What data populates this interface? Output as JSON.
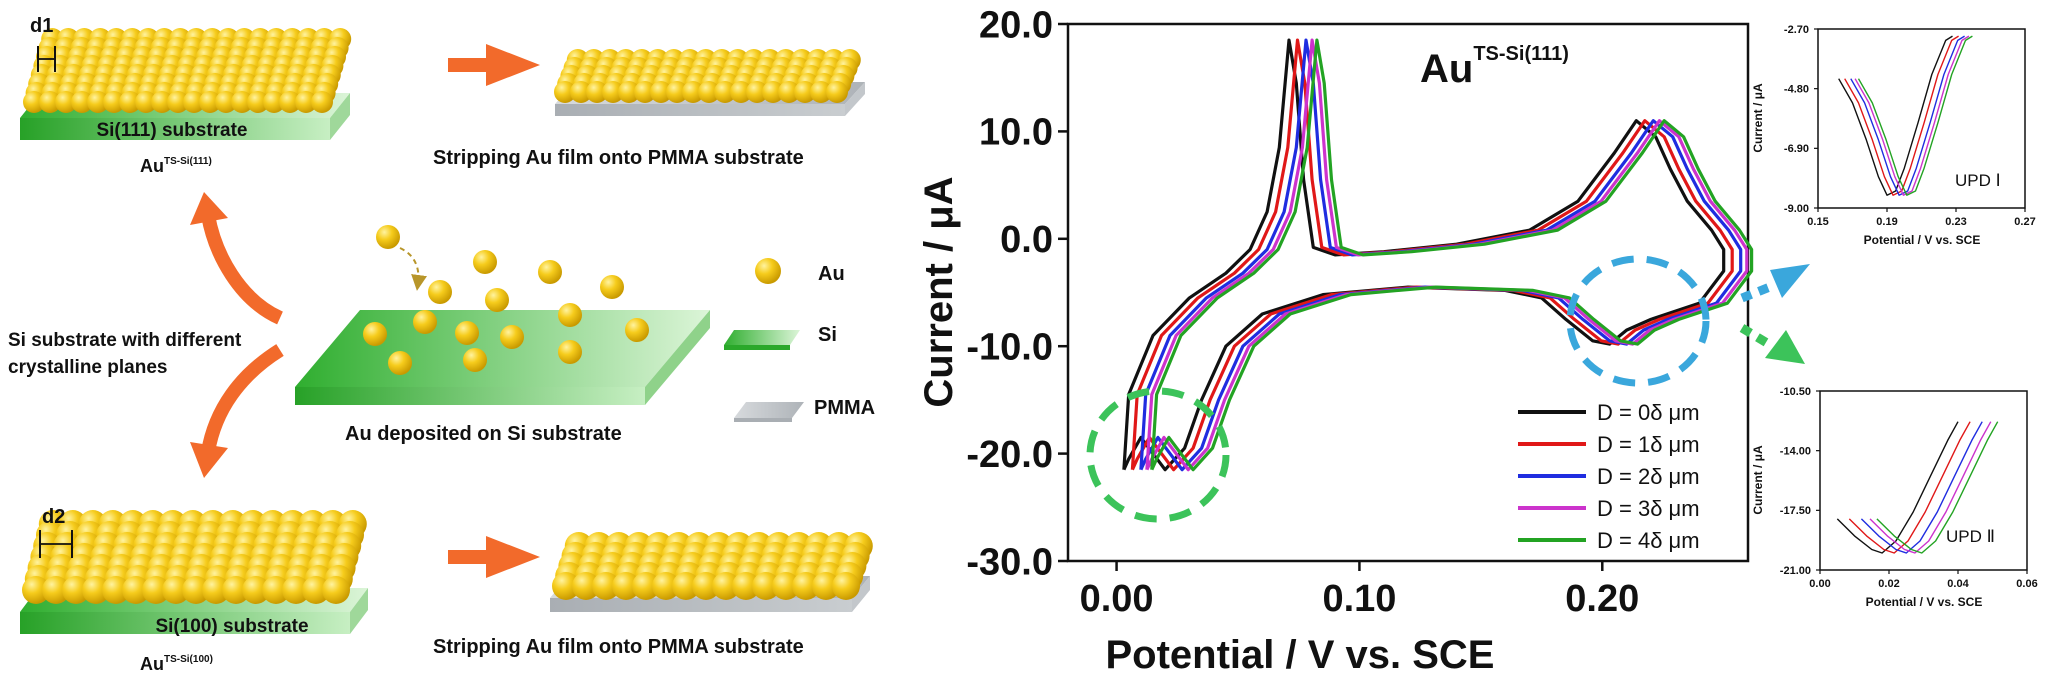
{
  "left_panel": {
    "d1_label": "d1",
    "d2_label": "d2",
    "si111_label": "Si(111) substrate",
    "si100_label": "Si(100) substrate",
    "au_ts_111": {
      "base": "Au",
      "sup": "TS-Si(111)"
    },
    "au_ts_100": {
      "base": "Au",
      "sup": "TS-Si(100)"
    },
    "strip_top": "Stripping Au film onto PMMA substrate",
    "strip_bottom": "Stripping Au film onto PMMA substrate",
    "si_substrate_text": [
      "Si substrate with different",
      "crystalline planes"
    ],
    "deposit_label": "Au deposited on Si substrate",
    "legend": {
      "au": "Au",
      "si": "Si",
      "pmma": "PMMA"
    },
    "colors": {
      "gold": "#f2c200",
      "si_green": "#3cb83c",
      "pmma_gray": "#b8bcc0",
      "arrow_orange": "#f26a2b"
    }
  },
  "chart_data": [
    {
      "type": "line",
      "title": "Au",
      "title_sup": "TS-Si(111)",
      "xlabel": "Potential / V vs. SCE",
      "ylabel": "Current / μA",
      "xlim": [
        -0.02,
        0.26
      ],
      "ylim": [
        -30,
        20
      ],
      "xticks": [
        "0.00",
        "0.10",
        "0.20"
      ],
      "yticks": [
        "20.0",
        "10.0",
        "0.0",
        "-10.0",
        "-20.0",
        "-30.0"
      ],
      "legend_position": "bottom-right",
      "series": [
        {
          "name": "D = 0δ μm",
          "color": "#111111"
        },
        {
          "name": "D = 1δ μm",
          "color": "#e01818"
        },
        {
          "name": "D = 2δ μm",
          "color": "#1f2de0"
        },
        {
          "name": "D = 3δ μm",
          "color": "#cc33cc"
        },
        {
          "name": "D = 4δ μm",
          "color": "#23a323"
        }
      ],
      "curve_points": [
        [
          0.003,
          -21.5
        ],
        [
          0.005,
          -14.5
        ],
        [
          0.015,
          -9.0
        ],
        [
          0.03,
          -5.5
        ],
        [
          0.045,
          -3.2
        ],
        [
          0.055,
          -1.0
        ],
        [
          0.062,
          2.5
        ],
        [
          0.067,
          8.5
        ],
        [
          0.071,
          18.5
        ],
        [
          0.074,
          14.5
        ],
        [
          0.077,
          5.5
        ],
        [
          0.081,
          -0.8
        ],
        [
          0.09,
          -1.5
        ],
        [
          0.11,
          -1.2
        ],
        [
          0.14,
          -0.5
        ],
        [
          0.17,
          0.8
        ],
        [
          0.19,
          3.5
        ],
        [
          0.205,
          8.0
        ],
        [
          0.214,
          11.0
        ],
        [
          0.222,
          9.5
        ],
        [
          0.228,
          6.5
        ],
        [
          0.235,
          3.5
        ],
        [
          0.245,
          0.8
        ],
        [
          0.25,
          -1.0
        ],
        [
          0.25,
          -3.0
        ],
        [
          0.24,
          -6.0
        ],
        [
          0.22,
          -7.5
        ],
        [
          0.21,
          -8.5
        ],
        [
          0.203,
          -9.8
        ],
        [
          0.196,
          -9.5
        ],
        [
          0.185,
          -7.5
        ],
        [
          0.175,
          -5.5
        ],
        [
          0.16,
          -4.8
        ],
        [
          0.12,
          -4.5
        ],
        [
          0.085,
          -5.2
        ],
        [
          0.06,
          -7.0
        ],
        [
          0.045,
          -10.0
        ],
        [
          0.035,
          -15.0
        ],
        [
          0.028,
          -19.5
        ],
        [
          0.02,
          -21.5
        ],
        [
          0.015,
          -20.0
        ],
        [
          0.01,
          -18.5
        ],
        [
          0.005,
          -20.5
        ],
        [
          0.003,
          -21.5
        ]
      ],
      "shifts": [
        0,
        0.0035,
        0.007,
        0.0095,
        0.0115
      ]
    },
    {
      "type": "line",
      "label": "UPD Ⅰ",
      "xlabel": "Potential / V vs. SCE",
      "ylabel": "Current / μA",
      "xlim": [
        0.15,
        0.27
      ],
      "ylim": [
        -9.0,
        -2.7
      ],
      "xticks": [
        "0.15",
        "0.19",
        "0.23",
        "0.27"
      ],
      "yticks": [
        "-2.70",
        "-4.80",
        "-6.90",
        "-9.00"
      ],
      "curve_points": [
        [
          0.162,
          -4.45
        ],
        [
          0.17,
          -5.3
        ],
        [
          0.178,
          -6.6
        ],
        [
          0.185,
          -7.9
        ],
        [
          0.19,
          -8.55
        ],
        [
          0.195,
          -8.4
        ],
        [
          0.2,
          -7.6
        ],
        [
          0.208,
          -6.0
        ],
        [
          0.216,
          -4.3
        ],
        [
          0.224,
          -3.1
        ],
        [
          0.228,
          -2.95
        ]
      ],
      "shifts": [
        0,
        0.0035,
        0.007,
        0.0095,
        0.0115
      ]
    },
    {
      "type": "line",
      "label": "UPD Ⅱ",
      "xlabel": "Potential / V vs. SCE",
      "ylabel": "Current / μA",
      "xlim": [
        0.0,
        0.06
      ],
      "ylim": [
        -21.0,
        -10.5
      ],
      "xticks": [
        "0.00",
        "0.02",
        "0.04",
        "0.06"
      ],
      "yticks": [
        "-10.50",
        "-14.00",
        "-17.50",
        "-21.00"
      ],
      "curve_points": [
        [
          0.005,
          -18.0
        ],
        [
          0.01,
          -19.0
        ],
        [
          0.015,
          -19.8
        ],
        [
          0.018,
          -20.0
        ],
        [
          0.022,
          -19.3
        ],
        [
          0.027,
          -17.6
        ],
        [
          0.032,
          -15.5
        ],
        [
          0.037,
          -13.4
        ],
        [
          0.04,
          -12.3
        ]
      ],
      "shifts": [
        0,
        0.0035,
        0.007,
        0.0095,
        0.0115
      ]
    }
  ]
}
